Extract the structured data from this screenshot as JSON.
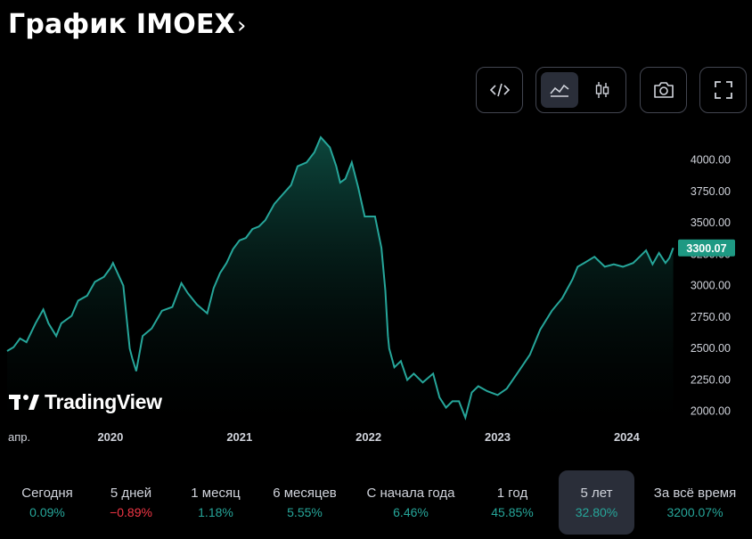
{
  "header": {
    "title": "График IMOEX",
    "chevron": "›"
  },
  "toolbar": {
    "embed_icon": "code-icon",
    "area_icon": "area-chart-icon",
    "candles_icon": "candlestick-icon",
    "snapshot_icon": "camera-icon",
    "fullscreen_icon": "fullscreen-icon",
    "active_chart_style": "area"
  },
  "watermark": {
    "text": "TradingView"
  },
  "colors": {
    "line": "#26a69a",
    "fill_top": "#0b3b34",
    "positive": "#26a69a",
    "negative": "#f23645",
    "price_label_bg": "#1e9983"
  },
  "chart_data": {
    "type": "area",
    "title": "IMOEX",
    "ylim": [
      1920,
      4280
    ],
    "y_ticks": [
      "4000.00",
      "3750.00",
      "3500.00",
      "3250.00",
      "3000.00",
      "2750.00",
      "2500.00",
      "2250.00",
      "2000.00"
    ],
    "y_tick_values": [
      4000,
      3750,
      3500,
      3250,
      3000,
      2750,
      2500,
      2250,
      2000
    ],
    "x_ticks": [
      "апр.",
      "2020",
      "2021",
      "2022",
      "2023",
      "2024"
    ],
    "x_tick_values": [
      2019.25,
      2020.0,
      2021.0,
      2022.0,
      2023.0,
      2024.0
    ],
    "xlim": [
      2019.2,
      2024.37
    ],
    "last_price": 3300.07,
    "last_price_label": "3300.07",
    "x": [
      2019.2,
      2019.25,
      2019.3,
      2019.35,
      2019.42,
      2019.48,
      2019.52,
      2019.58,
      2019.62,
      2019.7,
      2019.75,
      2019.82,
      2019.88,
      2019.95,
      2020.0,
      2020.02,
      2020.06,
      2020.1,
      2020.12,
      2020.15,
      2020.17,
      2020.2,
      2020.25,
      2020.32,
      2020.4,
      2020.48,
      2020.55,
      2020.6,
      2020.67,
      2020.75,
      2020.8,
      2020.85,
      2020.9,
      2020.95,
      2021.0,
      2021.05,
      2021.1,
      2021.15,
      2021.2,
      2021.27,
      2021.33,
      2021.4,
      2021.45,
      2021.52,
      2021.58,
      2021.63,
      2021.7,
      2021.75,
      2021.78,
      2021.82,
      2021.87,
      2021.92,
      2021.97,
      2022.05,
      2022.1,
      2022.13,
      2022.15,
      2022.16,
      2022.2,
      2022.25,
      2022.3,
      2022.35,
      2022.42,
      2022.5,
      2022.55,
      2022.6,
      2022.65,
      2022.7,
      2022.75,
      2022.8,
      2022.85,
      2022.92,
      2023.0,
      2023.07,
      2023.15,
      2023.25,
      2023.33,
      2023.42,
      2023.5,
      2023.58,
      2023.62,
      2023.67,
      2023.75,
      2023.83,
      2023.9,
      2023.97,
      2024.05,
      2024.1,
      2024.15,
      2024.2,
      2024.25,
      2024.3,
      2024.33,
      2024.36
    ],
    "values": [
      2480,
      2510,
      2580,
      2550,
      2700,
      2810,
      2700,
      2600,
      2700,
      2760,
      2880,
      2920,
      3030,
      3070,
      3140,
      3180,
      3090,
      3000,
      2800,
      2500,
      2420,
      2320,
      2600,
      2660,
      2800,
      2830,
      3020,
      2940,
      2850,
      2780,
      2980,
      3100,
      3180,
      3290,
      3360,
      3380,
      3450,
      3470,
      3520,
      3650,
      3720,
      3800,
      3950,
      3980,
      4060,
      4180,
      4100,
      3950,
      3820,
      3850,
      3980,
      3780,
      3550,
      3550,
      3300,
      2960,
      2600,
      2500,
      2350,
      2400,
      2250,
      2300,
      2230,
      2300,
      2110,
      2030,
      2080,
      2080,
      1950,
      2150,
      2200,
      2160,
      2130,
      2180,
      2300,
      2450,
      2650,
      2800,
      2900,
      3050,
      3150,
      3180,
      3230,
      3150,
      3170,
      3150,
      3180,
      3230,
      3280,
      3170,
      3260,
      3180,
      3220,
      3300
    ]
  },
  "periods": [
    {
      "label": "Сегодня",
      "value": "0.09%",
      "sign": "pos"
    },
    {
      "label": "5 дней",
      "value": "−0.89%",
      "sign": "neg"
    },
    {
      "label": "1 месяц",
      "value": "1.18%",
      "sign": "pos"
    },
    {
      "label": "6 месяцев",
      "value": "5.55%",
      "sign": "pos"
    },
    {
      "label": "С начала года",
      "value": "6.46%",
      "sign": "pos"
    },
    {
      "label": "1 год",
      "value": "45.85%",
      "sign": "pos"
    },
    {
      "label": "5 лет",
      "value": "32.80%",
      "sign": "pos",
      "active": true
    },
    {
      "label": "За всё время",
      "value": "3200.07%",
      "sign": "pos"
    }
  ]
}
